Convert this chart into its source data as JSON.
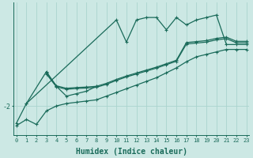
{
  "xlabel": "Humidex (Indice chaleur)",
  "bg_color": "#cce8e4",
  "line_color": "#1a6b5a",
  "grid_color": "#aad4ce",
  "ylim": [
    -3.2,
    2.2
  ],
  "yticks": [
    -2
  ],
  "xlim": [
    -0.3,
    23.3
  ],
  "tick_fontsize": 6,
  "axis_fontsize": 7,
  "series1_x": [
    0,
    1,
    10,
    11,
    12,
    13,
    14,
    15,
    16,
    17,
    18,
    19,
    20,
    21,
    22,
    23
  ],
  "series1_y": [
    -2.7,
    -1.9,
    1.5,
    0.6,
    1.5,
    1.6,
    1.6,
    1.1,
    1.6,
    1.3,
    1.5,
    1.6,
    1.7,
    0.5,
    0.5,
    0.5
  ],
  "series2_x": [
    1,
    3,
    4,
    5,
    6,
    7,
    8
  ],
  "series2_y": [
    -1.9,
    -0.6,
    -1.2,
    -1.6,
    -1.5,
    -1.4,
    -1.2
  ],
  "series3_x": [
    0,
    1,
    2,
    3,
    4,
    5,
    6,
    7,
    8,
    9,
    10,
    11,
    12,
    13,
    14,
    15,
    16,
    17,
    18,
    19,
    20,
    21,
    22,
    23
  ],
  "series3_y": [
    -2.8,
    -2.55,
    -2.75,
    -2.2,
    -2.0,
    -1.9,
    -1.85,
    -1.8,
    -1.75,
    -1.6,
    -1.45,
    -1.3,
    -1.15,
    -1.0,
    -0.85,
    -0.65,
    -0.45,
    -0.2,
    0.0,
    0.1,
    0.2,
    0.3,
    0.3,
    0.3
  ],
  "series4_x": [
    3,
    4,
    5,
    6,
    7,
    8,
    9,
    10,
    11,
    12,
    13,
    14,
    15,
    16,
    17,
    18,
    19,
    20,
    21,
    22,
    23
  ],
  "series4_y": [
    -0.65,
    -1.18,
    -1.28,
    -1.25,
    -1.23,
    -1.2,
    -1.08,
    -0.92,
    -0.78,
    -0.66,
    -0.54,
    -0.42,
    -0.28,
    -0.14,
    0.58,
    0.62,
    0.66,
    0.75,
    0.8,
    0.63,
    0.63
  ],
  "series5_x": [
    3,
    4,
    5,
    6,
    7,
    8,
    9,
    10,
    11,
    12,
    13,
    14,
    15,
    16,
    17,
    18,
    19,
    20,
    21,
    22,
    23
  ],
  "series5_y": [
    -0.7,
    -1.22,
    -1.32,
    -1.29,
    -1.27,
    -1.24,
    -1.12,
    -0.96,
    -0.82,
    -0.7,
    -0.58,
    -0.46,
    -0.32,
    -0.18,
    0.52,
    0.56,
    0.6,
    0.69,
    0.74,
    0.57,
    0.57
  ]
}
